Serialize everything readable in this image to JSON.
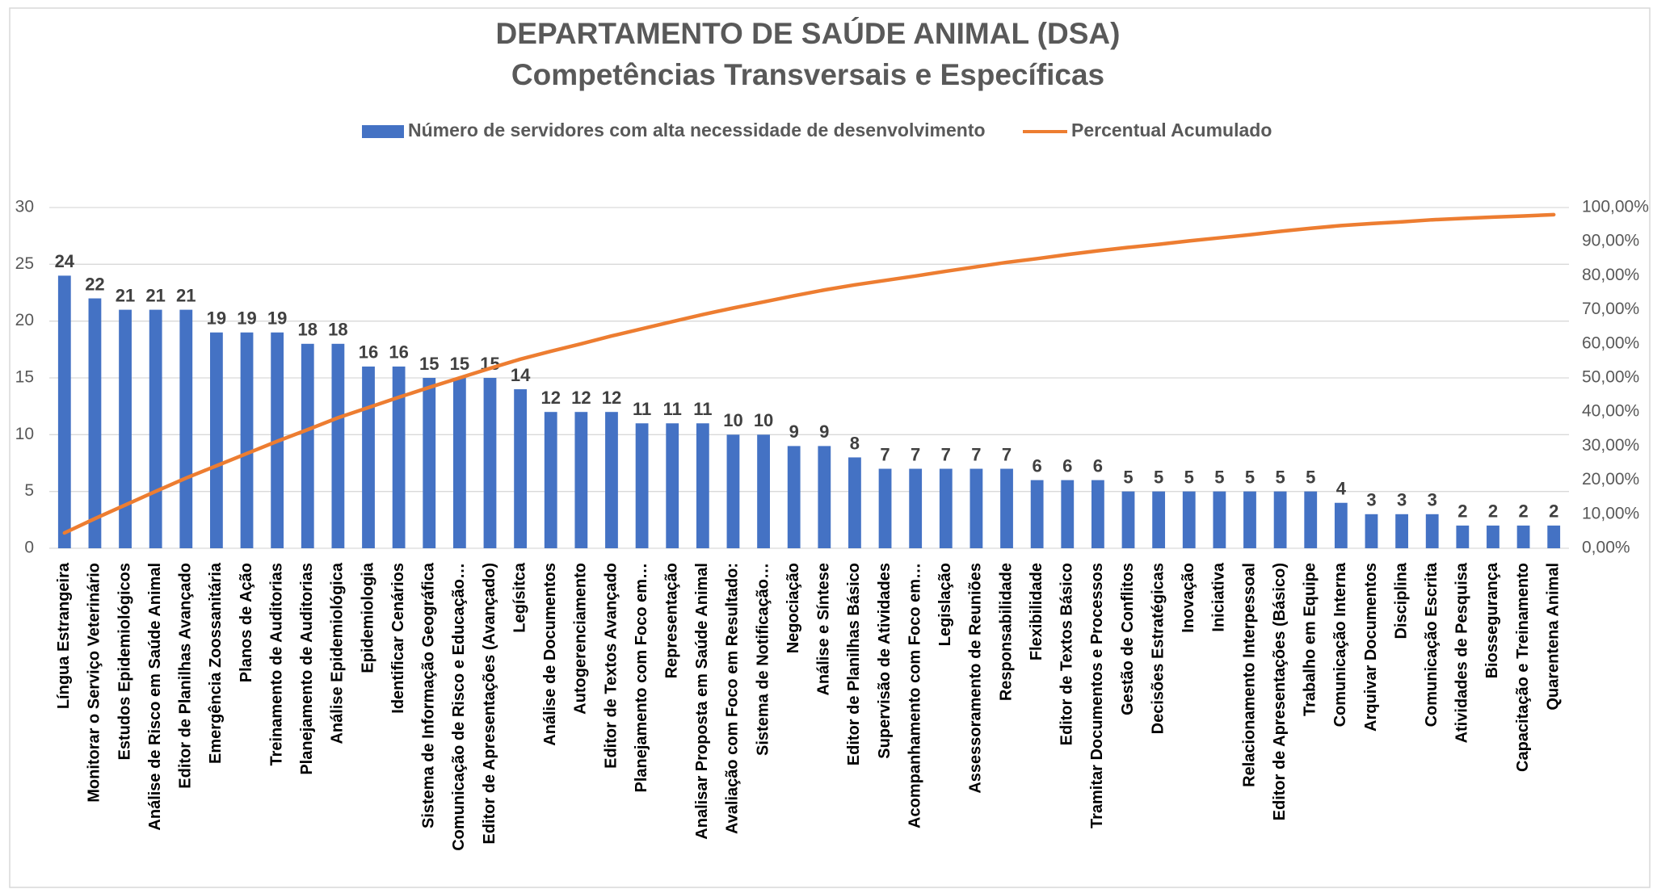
{
  "chart_data": {
    "type": "bar_line",
    "title": "DEPARTAMENTO DE SAÚDE ANIMAL (DSA)",
    "subtitle": "Competências Transversais e Específicas",
    "categories": [
      "Língua Estrangeira",
      "Monitorar o Serviço Veterinário",
      "Estudos Epidemiológicos",
      "Análise de Risco em Saúde Animal",
      "Editor de Planilhas Avançado",
      "Emergência Zoossanitária",
      "Planos de Ação",
      "Treinamento de Auditorias",
      "Planejamento de Auditorias",
      "Análise Epidemiológica",
      "Epidemiologia",
      "Identificar Cenários",
      "Sistema de Informação Geográfica",
      "Comunicação de Risco e Educação…",
      "Editor de Apresentações (Avançado)",
      "Legísitca",
      "Análise de Documentos",
      "Autogerenciamento",
      "Editor de Textos Avançado",
      "Planejamento com Foco em…",
      "Representação",
      "Analisar Proposta em Saúde Animal",
      "Avaliação com Foco em Resultado:",
      "Sistema de Notificação…",
      "Negociação",
      "Análise e Síntese",
      "Editor de Planilhas Básico",
      "Supervisão de Atividades",
      "Acompanhamento com Foco em…",
      "Legislação",
      "Assessoramento de Reuniões",
      "Responsabilidade",
      "Flexibilidade",
      "Editor de Textos Básico",
      "Tramitar Documentos e Processos",
      "Gestão de Conflitos",
      "Decisões Estratégicas",
      "Inovação",
      "Iniciativa",
      "Relacionamento Interpessoal",
      "Editor de Apresentações (Básico)",
      "Trabalho em Equipe",
      "Comunicação Interna",
      "Arquivar Documentos",
      "Disciplina",
      "Comunicação Escrita",
      "Atividades de Pesquisa",
      "Biossegurança",
      "Capacitação e Treinamento",
      "Quarentena Animal"
    ],
    "series": [
      {
        "name": "Número de servidores com alta necessidade de desenvolvimento",
        "color": "#4472c4",
        "type": "bar",
        "values": [
          24,
          22,
          21,
          21,
          21,
          19,
          19,
          19,
          18,
          18,
          16,
          16,
          15,
          15,
          15,
          14,
          12,
          12,
          12,
          11,
          11,
          11,
          10,
          10,
          9,
          9,
          8,
          7,
          7,
          7,
          7,
          7,
          6,
          6,
          6,
          5,
          5,
          5,
          5,
          5,
          5,
          5,
          4,
          3,
          3,
          3,
          2,
          2,
          2,
          2
        ]
      },
      {
        "name": "Percentual Acumulado",
        "color": "#ed7d31",
        "type": "line",
        "axis": "y2",
        "values": [
          4.5,
          8.7,
          12.7,
          16.7,
          20.6,
          24.2,
          27.8,
          31.4,
          34.8,
          38.3,
          41.3,
          44.3,
          47.2,
          50.0,
          52.8,
          55.5,
          57.8,
          60.0,
          62.3,
          64.4,
          66.5,
          68.6,
          70.5,
          72.3,
          74.1,
          75.8,
          77.3,
          78.6,
          79.9,
          81.3,
          82.6,
          83.9,
          85.0,
          86.2,
          87.3,
          88.3,
          89.2,
          90.2,
          91.1,
          92.0,
          93.0,
          93.9,
          94.7,
          95.3,
          95.8,
          96.4,
          96.8,
          97.2,
          97.5,
          97.9
        ]
      }
    ],
    "ylim": [
      0,
      30
    ],
    "yticks": [
      0,
      5,
      10,
      15,
      20,
      25,
      30
    ],
    "y2lim": [
      0,
      100
    ],
    "y2ticks": [
      {
        "value": 0,
        "label": "0,00%"
      },
      {
        "value": 10,
        "label": "10,00%"
      },
      {
        "value": 20,
        "label": "20,00%"
      },
      {
        "value": 30,
        "label": "30,00%"
      },
      {
        "value": 40,
        "label": "40,00%"
      },
      {
        "value": 50,
        "label": "50,00%"
      },
      {
        "value": 60,
        "label": "60,00%"
      },
      {
        "value": 70,
        "label": "70,00%"
      },
      {
        "value": 80,
        "label": "80,00%"
      },
      {
        "value": 90,
        "label": "90,00%"
      },
      {
        "value": 100,
        "label": "100,00%"
      }
    ],
    "grid": true,
    "legend": "top"
  }
}
